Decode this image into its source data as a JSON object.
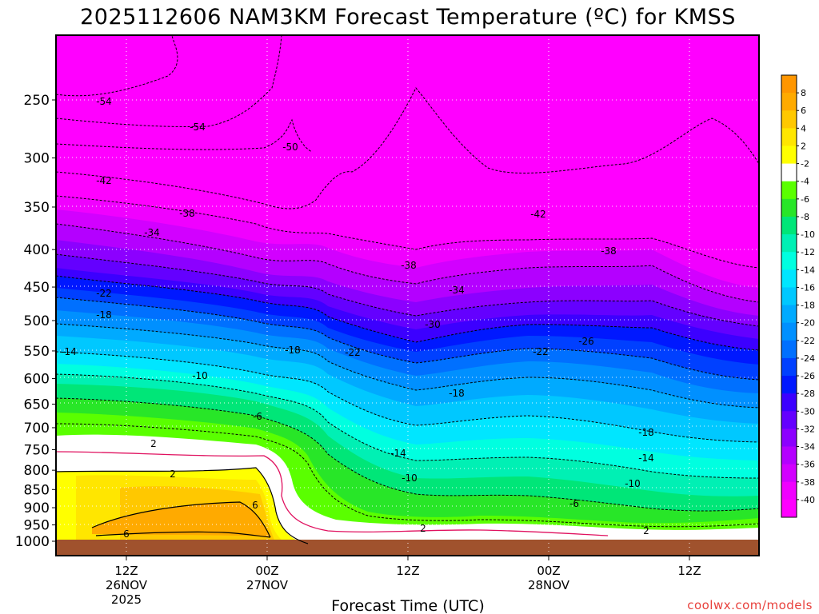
{
  "chart_data": {
    "type": "heatmap",
    "title": "2025112606 NAM3KM Forecast Temperature (ºC) for KMSS",
    "xlabel": "Forecast Time (UTC)",
    "ylabel": "",
    "credit": "coolwx.com/models",
    "x_ticks": [
      {
        "lines": [
          "12Z",
          "26NOV",
          "2025"
        ]
      },
      {
        "lines": [
          "00Z",
          "27NOV"
        ]
      },
      {
        "lines": [
          "12Z"
        ]
      },
      {
        "lines": [
          "00Z",
          "28NOV"
        ]
      },
      {
        "lines": [
          "12Z"
        ]
      }
    ],
    "y_ticks": [
      "250",
      "300",
      "350",
      "400",
      "450",
      "500",
      "550",
      "600",
      "650",
      "700",
      "750",
      "800",
      "850",
      "900",
      "950",
      "1000"
    ],
    "pressure_levels_hPa": [
      250,
      300,
      350,
      400,
      450,
      500,
      550,
      600,
      650,
      700,
      750,
      800,
      850,
      900,
      950,
      1000
    ],
    "colorbar": {
      "ticks": [
        "8",
        "6",
        "4",
        "2",
        "-2",
        "-4",
        "-6",
        "-8",
        "-10",
        "-12",
        "-14",
        "-16",
        "-18",
        "-20",
        "-22",
        "-24",
        "-26",
        "-28",
        "-30",
        "-32",
        "-34",
        "-36",
        "-38",
        "-40"
      ],
      "colors": [
        "#ff9600",
        "#ffaa00",
        "#ffc800",
        "#ffe600",
        "#ffff00",
        "#ffffff",
        "#5aff00",
        "#28e628",
        "#00e678",
        "#00f0b4",
        "#00ffe0",
        "#00e6ff",
        "#00c8ff",
        "#00aaff",
        "#0090ff",
        "#0070ff",
        "#0040ff",
        "#0018ff",
        "#3c00ff",
        "#6400ff",
        "#8c00ff",
        "#b400ff",
        "#d200ff",
        "#f000ff",
        "#ff00ff"
      ]
    },
    "contour_labels": [
      {
        "text": "-54"
      },
      {
        "text": "-54"
      },
      {
        "text": "-50"
      },
      {
        "text": "-42"
      },
      {
        "text": "-38"
      },
      {
        "text": "-42"
      },
      {
        "text": "-34"
      },
      {
        "text": "-38"
      },
      {
        "text": "-38"
      },
      {
        "text": "-34"
      },
      {
        "text": "-22"
      },
      {
        "text": "-30"
      },
      {
        "text": "-18"
      },
      {
        "text": "-26"
      },
      {
        "text": "-14"
      },
      {
        "text": "-18"
      },
      {
        "text": "-22"
      },
      {
        "text": "-22"
      },
      {
        "text": "-10"
      },
      {
        "text": "-18"
      },
      {
        "text": "-6"
      },
      {
        "text": "-18"
      },
      {
        "text": "-14"
      },
      {
        "text": "-14"
      },
      {
        "text": "2"
      },
      {
        "text": "-10"
      },
      {
        "text": "-10"
      },
      {
        "text": "2"
      },
      {
        "text": "-6"
      },
      {
        "text": "6"
      },
      {
        "text": "2"
      },
      {
        "text": "6"
      },
      {
        "text": "2"
      }
    ]
  }
}
